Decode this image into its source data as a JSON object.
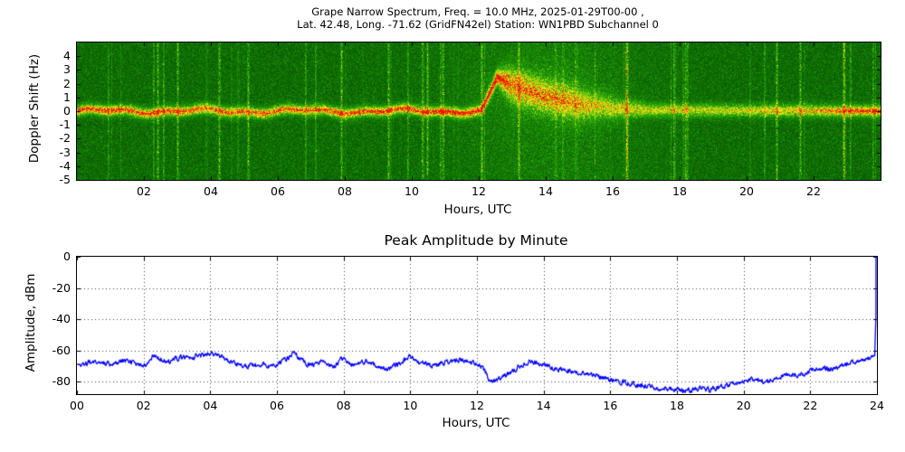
{
  "figure": {
    "background": "#ffffff",
    "border_color": "#000000"
  },
  "chart_data": [
    {
      "type": "heatmap",
      "subtype": "doppler-spectrogram",
      "title_line1": "Grape Narrow Spectrum, Freq. = 10.0 MHz, 2025-01-29T00-00 ,",
      "title_line2": "Lat.  42.48, Long. -71.62 (GridFN42el) Station: WN1PBD Subchannel 0",
      "xlabel": "Hours, UTC",
      "ylabel": "Doppler Shift (Hz)",
      "xlim": [
        0,
        24
      ],
      "ylim": [
        -5,
        5
      ],
      "xtick_values": [
        2,
        4,
        6,
        8,
        10,
        12,
        14,
        16,
        18,
        20,
        22
      ],
      "xtick_labels": [
        "02",
        "04",
        "06",
        "08",
        "10",
        "12",
        "14",
        "16",
        "18",
        "20",
        "22"
      ],
      "ytick_values": [
        4,
        3,
        2,
        1,
        0,
        -1,
        -2,
        -3,
        -4,
        -5
      ],
      "ytick_labels": [
        "4",
        "3",
        "2",
        "1",
        "0",
        "-1",
        "-2",
        "-3",
        "-4",
        "-5"
      ],
      "colormap_stops": [
        "#004600",
        "#28aa0a",
        "#f0f014",
        "#e61400"
      ],
      "background_color": "#0e6e0e",
      "description": "Green noise field with a narrow yellow/red carrier trace near 0 Hz from 00-12 UTC; at ~12.1 UTC the trace jumps to about +2.5 Hz and decays back toward 0 Hz by ~17 UTC with a broad diffuse yellow region; faint trace near 0 Hz afterwards, brightening again after ~22.5 UTC; scattered bright vertical interference stripes.",
      "carrier_track": {
        "x": [
          0,
          12.05,
          12.15,
          12.55,
          13.0,
          13.5,
          14.0,
          14.5,
          15.0,
          16.0,
          17.0,
          24
        ],
        "center_hz": [
          0,
          0,
          0.4,
          2.5,
          1.9,
          1.45,
          1.05,
          0.75,
          0.5,
          0.22,
          0.08,
          0
        ]
      },
      "band_sigma_hz": {
        "x": [
          0,
          12.0,
          12.55,
          13.0,
          15.0,
          16.0,
          17.0,
          24
        ],
        "v": [
          0.28,
          0.28,
          0.38,
          0.85,
          0.8,
          0.55,
          0.35,
          0.3
        ]
      },
      "band_intensity": {
        "x": [
          0,
          12.0,
          12.55,
          13.0,
          16.0,
          20.0,
          22.5,
          24
        ],
        "v": [
          0.8,
          0.8,
          0.95,
          0.75,
          0.6,
          0.62,
          0.8,
          0.85
        ]
      },
      "red_core_intensity": {
        "x": [
          0,
          2,
          4,
          6,
          8,
          10,
          12,
          12.5,
          13,
          16,
          22,
          23,
          24
        ],
        "v": [
          0.35,
          0.3,
          0.18,
          0.22,
          0.26,
          0.3,
          0.35,
          0.4,
          0.08,
          0.03,
          0.05,
          0.22,
          0.3
        ]
      },
      "bright_stripe_hours": [
        2.4,
        3.0,
        4.25,
        5.1,
        7.9,
        9.3,
        10.45,
        12.08,
        13.2,
        16.4,
        20.9,
        21.6,
        22.9
      ]
    },
    {
      "type": "line",
      "title": "Peak Amplitude by Minute",
      "xlabel": "Hours, UTC",
      "ylabel": "Amplitude, dBm",
      "xlim": [
        0,
        24
      ],
      "ylim": [
        -88,
        0
      ],
      "xtick_values": [
        0,
        2,
        4,
        6,
        8,
        10,
        12,
        14,
        16,
        18,
        20,
        22,
        24
      ],
      "xtick_labels": [
        "00",
        "02",
        "04",
        "06",
        "08",
        "10",
        "12",
        "14",
        "16",
        "18",
        "20",
        "22",
        "24"
      ],
      "ytick_values": [
        0,
        -20,
        -40,
        -60,
        -80
      ],
      "ytick_labels": [
        "0",
        "-20",
        "-40",
        "-60",
        "-80"
      ],
      "line_color": "#0000ff",
      "grid": "dotted",
      "noise_db": 2.8,
      "series": [
        {
          "name": "Peak amplitude (dBm)",
          "x": [
            0,
            0.5,
            1,
            1.5,
            2,
            2.3,
            2.7,
            3,
            3.5,
            4,
            4.3,
            4.7,
            5,
            5.5,
            6,
            6.5,
            7,
            7.3,
            7.7,
            8,
            8.3,
            8.7,
            9,
            9.3,
            9.7,
            10,
            10.3,
            10.7,
            11,
            11.5,
            12,
            12.2,
            12.4,
            12.7,
            13,
            13.3,
            13.6,
            14,
            14.5,
            15,
            15.5,
            16,
            16.5,
            17,
            17.5,
            18,
            18.3,
            18.7,
            19,
            19.3,
            19.7,
            20,
            20.3,
            20.7,
            21,
            21.3,
            21.7,
            22,
            22.3,
            22.7,
            23,
            23.3,
            23.7,
            23.95,
            24
          ],
          "y": [
            -70,
            -67,
            -69,
            -66,
            -70,
            -63,
            -68,
            -65,
            -64,
            -62,
            -64,
            -68,
            -70,
            -69,
            -70,
            -62,
            -70,
            -67,
            -71,
            -64,
            -70,
            -66,
            -70,
            -72,
            -68,
            -64,
            -68,
            -70,
            -68,
            -66,
            -68,
            -72,
            -80,
            -78,
            -74,
            -70,
            -67,
            -70,
            -72,
            -74,
            -76,
            -79,
            -81,
            -83,
            -84,
            -85,
            -86,
            -84,
            -85,
            -83,
            -81,
            -80,
            -78,
            -80,
            -77,
            -75,
            -76,
            -73,
            -71,
            -72,
            -69,
            -67,
            -66,
            -63,
            0
          ]
        }
      ]
    }
  ]
}
